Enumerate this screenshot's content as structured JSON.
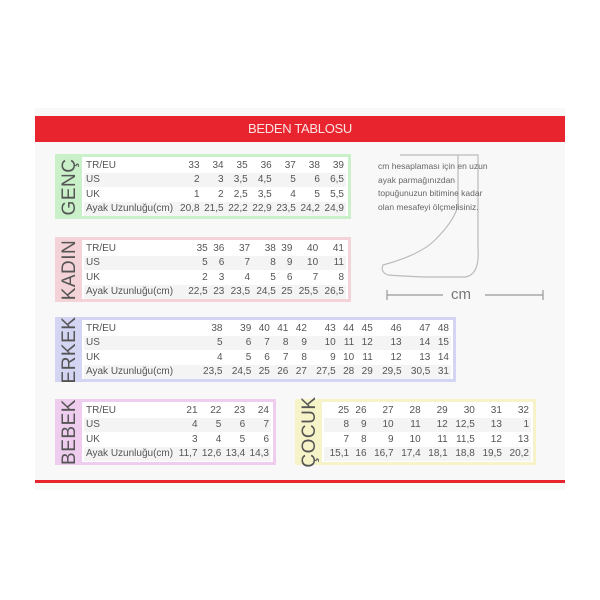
{
  "title": "BEDEN TABLOSU",
  "note": "cm hesaplaması için en uzun ayak parmağınızdan topuğunuzun bitimine kadar olan mesafeyi ölçmelisiniz.",
  "measure_label": "cm",
  "colors": {
    "banner": "#e8252e",
    "genc": "#c9f0c9",
    "kadin": "#f3d3d8",
    "erkek": "#d4d4f3",
    "bebek": "#efcdef",
    "cocuk": "#f6f3c8"
  },
  "tables": {
    "genc": {
      "label": "GENÇ",
      "rows": [
        [
          "TR/EU",
          "33",
          "34",
          "35",
          "36",
          "37",
          "38",
          "39"
        ],
        [
          "US",
          "2",
          "3",
          "3,5",
          "4,5",
          "5",
          "6",
          "6,5"
        ],
        [
          "UK",
          "1",
          "2",
          "2,5",
          "3,5",
          "4",
          "5",
          "5,5"
        ],
        [
          "Ayak Uzunluğu(cm)",
          "20,8",
          "21,5",
          "22,2",
          "22,9",
          "23,5",
          "24,2",
          "24,9"
        ]
      ]
    },
    "kadin": {
      "label": "KADIN",
      "rows": [
        [
          "TR/EU",
          "35",
          "36",
          "37",
          "38",
          "39",
          "40",
          "41"
        ],
        [
          "US",
          "5",
          "6",
          "7",
          "8",
          "9",
          "10",
          "11"
        ],
        [
          "UK",
          "2",
          "3",
          "4",
          "5",
          "6",
          "7",
          "8"
        ],
        [
          "Ayak Uzunluğu(cm)",
          "22,5",
          "23",
          "23,5",
          "24,5",
          "25",
          "25,5",
          "26,5"
        ]
      ]
    },
    "erkek": {
      "label": "ERKEK",
      "rows": [
        [
          "TR/EU",
          "38",
          "39",
          "40",
          "41",
          "42",
          "43",
          "44",
          "45",
          "46",
          "47",
          "48"
        ],
        [
          "US",
          "5",
          "6",
          "7",
          "8",
          "9",
          "10",
          "11",
          "12",
          "13",
          "14",
          "15"
        ],
        [
          "UK",
          "4",
          "5",
          "6",
          "7",
          "8",
          "9",
          "10",
          "11",
          "12",
          "13",
          "14"
        ],
        [
          "Ayak Uzunluğu(cm)",
          "23,5",
          "24,5",
          "25",
          "26",
          "27",
          "27,5",
          "28",
          "29",
          "29,5",
          "30,5",
          "31"
        ]
      ]
    },
    "bebek": {
      "label": "BEBEK",
      "rows": [
        [
          "TR/EU",
          "21",
          "22",
          "23",
          "24"
        ],
        [
          "US",
          "4",
          "5",
          "6",
          "7"
        ],
        [
          "UK",
          "3",
          "4",
          "5",
          "6"
        ],
        [
          "Ayak Uzunluğu(cm)",
          "11,7",
          "12,6",
          "13,4",
          "14,3"
        ]
      ]
    },
    "cocuk": {
      "label": "ÇOCUK",
      "rows": [
        [
          "25",
          "26",
          "27",
          "28",
          "29",
          "30",
          "31",
          "32"
        ],
        [
          "8",
          "9",
          "10",
          "11",
          "12",
          "12,5",
          "13",
          "1"
        ],
        [
          "7",
          "8",
          "9",
          "10",
          "11",
          "11,5",
          "12",
          "13"
        ],
        [
          "15,1",
          "16",
          "16,7",
          "17,4",
          "18,1",
          "18,8",
          "19,5",
          "20,2"
        ]
      ]
    }
  }
}
